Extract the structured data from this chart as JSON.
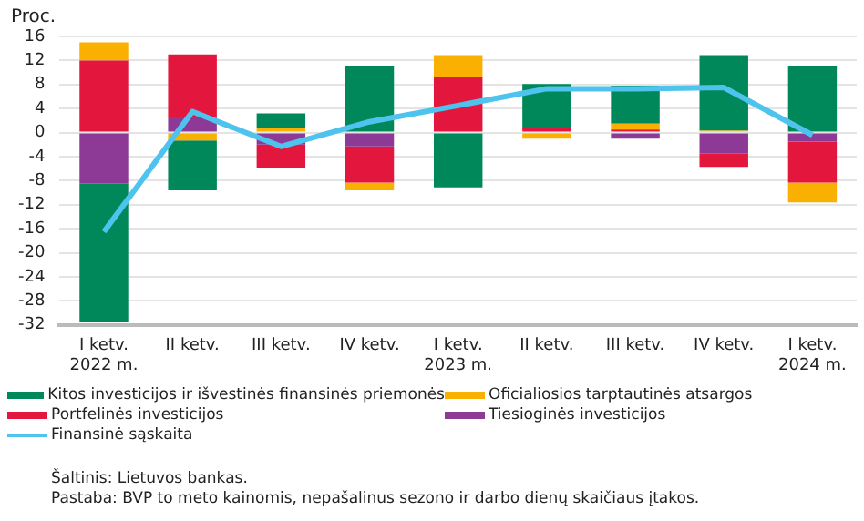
{
  "chart_data": {
    "type": "bar",
    "stacked": true,
    "ylabel": "Proc.",
    "categories": [
      "I ketv.\n2022 m.",
      "II ketv.",
      "III ketv.",
      "IV ketv.",
      "I ketv.\n2023 m.",
      "II ketv.",
      "III ketv.",
      "IV ketv.",
      "I ketv.\n2024 m."
    ],
    "series": [
      {
        "name": "Tiesioginės investicijos",
        "color": "#8c3a96",
        "values": [
          -8.5,
          2.5,
          -2,
          -2.3,
          0,
          0,
          -1,
          -3.5,
          -1.5
        ]
      },
      {
        "name": "Portfelinės investicijos",
        "color": "#e3173e",
        "values": [
          12,
          10.5,
          -3.8,
          -6,
          9.2,
          0.8,
          0.5,
          -2.2,
          -6.8
        ]
      },
      {
        "name": "Oficialiosios tarptautinės atsargos",
        "color": "#f9b000",
        "values": [
          3,
          -1.3,
          0.7,
          -1.3,
          3.7,
          -1,
          1,
          0.3,
          -3.3
        ]
      },
      {
        "name": "Kitos investicijos ir išvestinės finansinės priemonės",
        "color": "#00875a",
        "values": [
          -23,
          -8.3,
          2.5,
          11,
          -9.1,
          7.3,
          6.3,
          12.6,
          11.1
        ]
      },
      {
        "name": "Finansinė sąskaita",
        "type": "line",
        "color": "#4dc3ee",
        "values": [
          -16.5,
          3.5,
          -2.3,
          1.8,
          4.5,
          7.3,
          7.3,
          7.5,
          -0.4
        ]
      }
    ],
    "ylim": [
      -32,
      16
    ],
    "yticks": [
      -32,
      -28,
      -24,
      -20,
      -16,
      -12,
      -8,
      -4,
      0,
      4,
      8,
      12,
      16
    ],
    "grid": "y",
    "legend": "bottom",
    "marker": "none",
    "annotations": [
      "Šaltinis: Lietuvos bankas.",
      "Pastaba: BVP to meto kainomis, nepašalinus sezono ir darbo dienų skaičiaus įtakos."
    ]
  }
}
